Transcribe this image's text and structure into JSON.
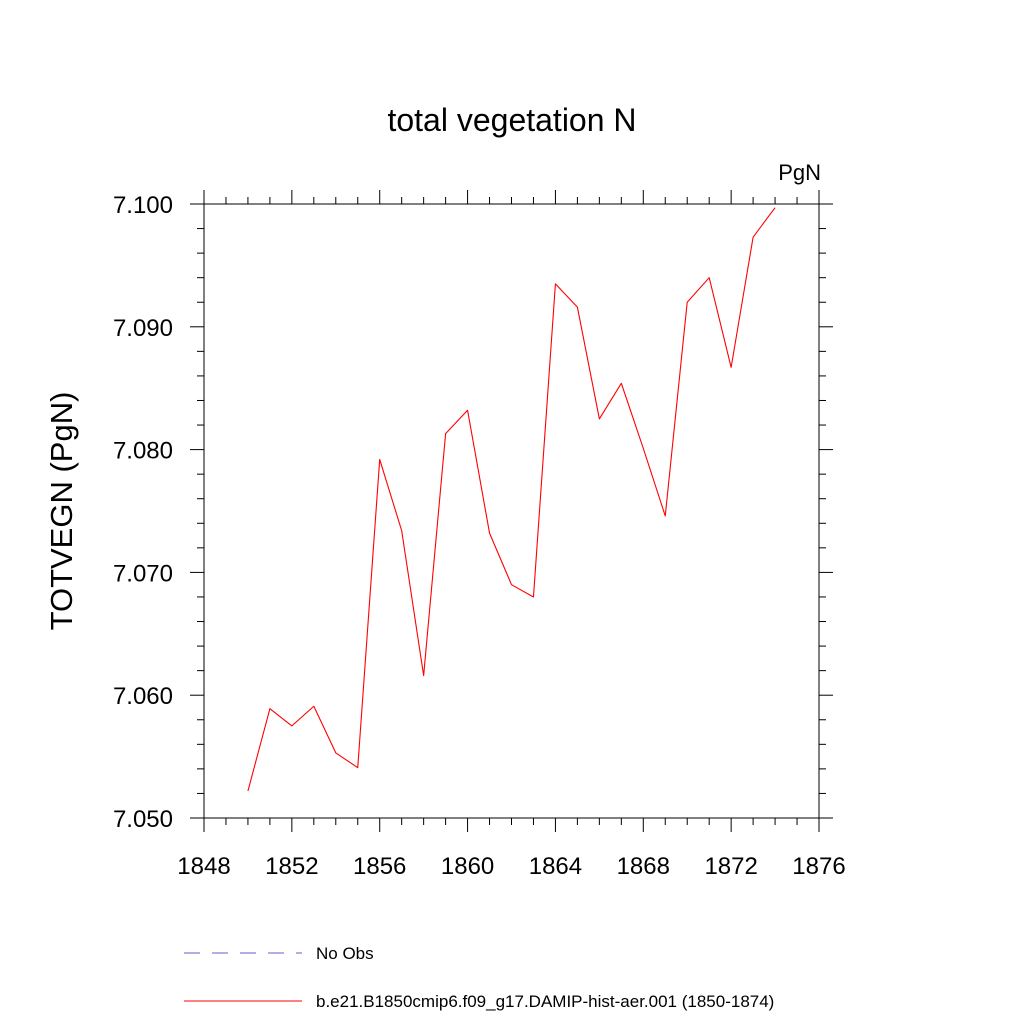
{
  "chart_data": {
    "type": "line",
    "title": "total vegetation N",
    "units": "PgN",
    "xlabel": "",
    "ylabel": "TOTVEGN  (PgN)",
    "xlim": [
      1848,
      1876
    ],
    "ylim": [
      7.05,
      7.1
    ],
    "x_ticks": [
      1848,
      1852,
      1856,
      1860,
      1864,
      1868,
      1872,
      1876
    ],
    "y_ticks": [
      "7.050",
      "7.060",
      "7.070",
      "7.080",
      "7.090",
      "7.100"
    ],
    "grid": false,
    "legend_position": "bottom",
    "series": [
      {
        "name": "b.e21.B1850cmip6.f09_g17.DAMIP-hist-aer.001 (1850-1874)",
        "color": "#ff0000",
        "style": "solid",
        "x": [
          1850,
          1851,
          1852,
          1853,
          1854,
          1855,
          1856,
          1857,
          1858,
          1859,
          1860,
          1861,
          1862,
          1863,
          1864,
          1865,
          1866,
          1867,
          1868,
          1869,
          1870,
          1871,
          1872,
          1873,
          1874
        ],
        "values": [
          7.0522,
          7.0589,
          7.0575,
          7.0591,
          7.0553,
          7.0541,
          7.0792,
          7.0734,
          7.0616,
          7.0813,
          7.0832,
          7.0732,
          7.069,
          7.068,
          7.0935,
          7.0916,
          7.0825,
          7.0854,
          7.0801,
          7.0746,
          7.092,
          7.094,
          7.0867,
          7.0973,
          7.0997
        ]
      },
      {
        "name": "No Obs",
        "color": "#6a5acd",
        "style": "dashed",
        "x": [],
        "values": []
      }
    ]
  }
}
